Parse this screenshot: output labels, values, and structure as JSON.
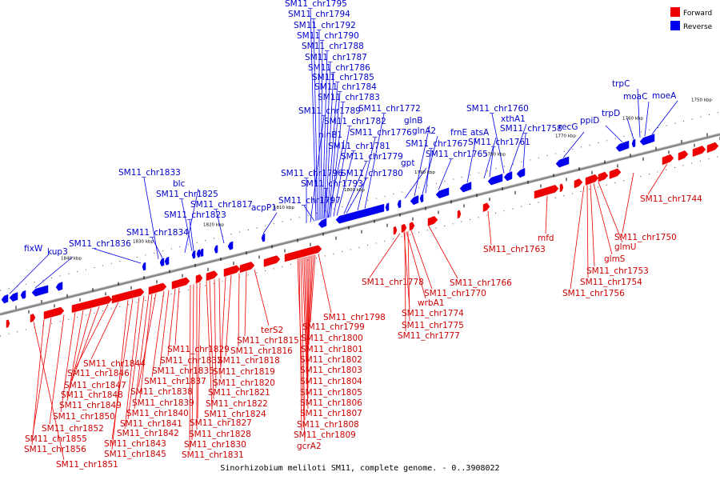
{
  "title": "Sinorhizobium meliloti SM11, complete genome. - 0..3908022",
  "legend": [
    {
      "label": "Forward",
      "color": "#ee0000"
    },
    {
      "label": "Reverse",
      "color": "#0000ee"
    }
  ],
  "colors": {
    "forward": "#ee0000",
    "reverse": "#0000ee",
    "backbone": "#777777"
  },
  "ticks": [
    "1840 kbp",
    "1830 kbp",
    "1820 kbp",
    "1810 kbp",
    "1800 kbp",
    "1790 kbp",
    "1780 kbp",
    "1770 kbp",
    "1760 kbp",
    "1750 kbp"
  ],
  "reverse_labels": [
    "SM11_chr1795",
    "SM11_chr1794",
    "SM11_chr1792",
    "SM11_chr1790",
    "SM11_chr1788",
    "SM11_chr1787",
    "SM11_chr1786",
    "SM11_chr1785",
    "SM11_chr1784",
    "SM11_chr1783",
    "SM11_chr1789",
    "SM11_chr1782",
    "ninB1",
    "SM11_chr1781",
    "SM11_chr1779",
    "SM11_chr1780",
    "SM11_chr1776",
    "SM11_chr1772",
    "glnB",
    "glnA2",
    "SM11_chr1767",
    "SM11_chr1765",
    "frnE",
    "atsA",
    "SM11_chr1761",
    "SM11_chr1760",
    "xthA1",
    "SM11_chr1758",
    "recG",
    "ppiD",
    "trpD",
    "trpC",
    "moaC",
    "moeA",
    "gpt",
    "SM11_chr1796",
    "SM11_chr1793",
    "SM11_chr1797",
    "SM11_chr1833",
    "blc",
    "SM11_chr1825",
    "SM11_chr1823",
    "SM11_chr1817",
    "acpP1",
    "SM11_chr1834",
    "SM11_chr1836",
    "fixW",
    "kup3"
  ],
  "forward_labels": [
    "SM11_chr1798",
    "SM11_chr1799",
    "SM11_chr1800",
    "SM11_chr1801",
    "SM11_chr1802",
    "SM11_chr1803",
    "SM11_chr1804",
    "SM11_chr1805",
    "SM11_chr1806",
    "SM11_chr1807",
    "SM11_chr1808",
    "SM11_chr1809",
    "gcrA2",
    "terS2",
    "SM11_chr1815",
    "SM11_chr1816",
    "SM11_chr1818",
    "SM11_chr1819",
    "SM11_chr1820",
    "SM11_chr1821",
    "SM11_chr1822",
    "SM11_chr1824",
    "SM11_chr1827",
    "SM11_chr1828",
    "SM11_chr1830",
    "SM11_chr1831",
    "SM11_chr1829",
    "SM11_chr1832",
    "SM11_chr1835",
    "SM11_chr1837",
    "SM11_chr1838",
    "SM11_chr1839",
    "SM11_chr1840",
    "SM11_chr1841",
    "SM11_chr1842",
    "SM11_chr1843",
    "SM11_chr1845",
    "SM11_chr1844",
    "SM11_chr1846",
    "SM11_chr1847",
    "SM11_chr1848",
    "SM11_chr1849",
    "SM11_chr1850",
    "SM11_chr1852",
    "SM11_chr1855",
    "SM11_chr1856",
    "SM11_chr1851",
    "SM11_chr1778",
    "SM11_chr1770",
    "SM11_chr1766",
    "wrbA1",
    "SM11_chr1774",
    "SM11_chr1775",
    "SM11_chr1777",
    "SM11_chr1763",
    "mfd",
    "SM11_chr1744",
    "SM11_chr1750",
    "glmU",
    "glmS",
    "SM11_chr1753",
    "SM11_chr1754",
    "SM11_chr1756"
  ]
}
